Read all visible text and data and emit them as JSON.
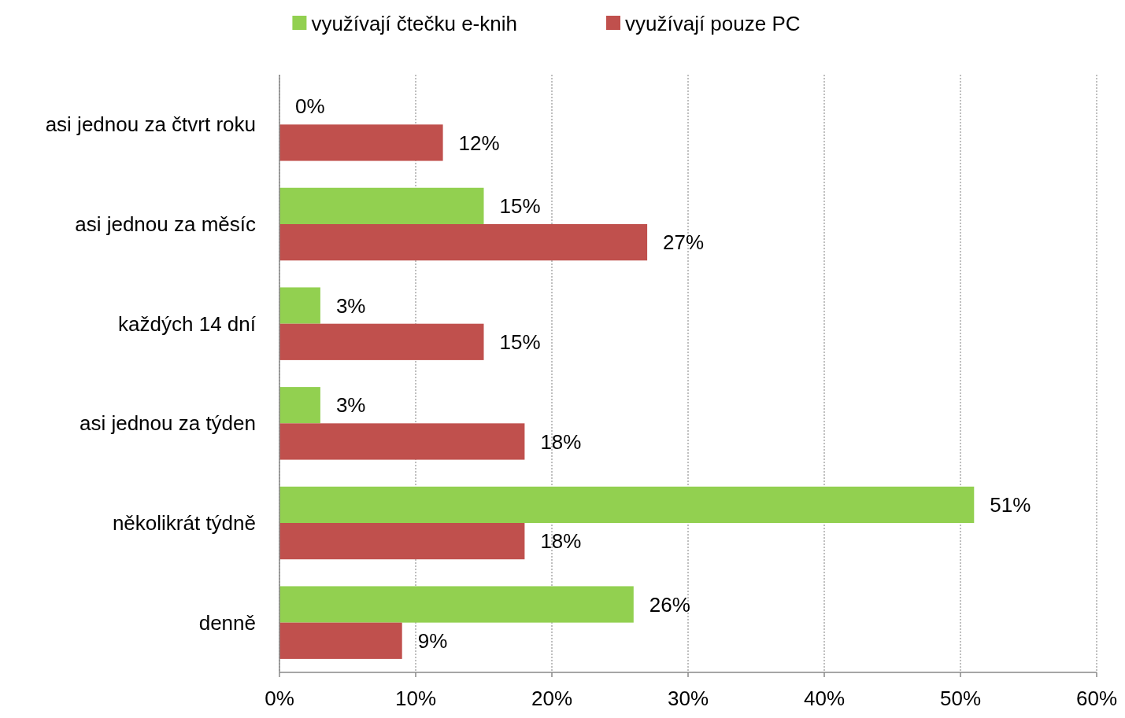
{
  "chart_data": {
    "type": "bar",
    "orientation": "horizontal",
    "categories": [
      "asi jednou za čtvrt roku",
      "asi jednou za měsíc",
      "každých 14 dní",
      "asi jednou za týden",
      "několikrát týdně",
      "denně"
    ],
    "series": [
      {
        "name": "využívají čtečku e-knih",
        "color": "#92d050",
        "values": [
          0,
          15,
          3,
          3,
          51,
          26
        ],
        "value_labels": [
          "0%",
          "15%",
          "3%",
          "3%",
          "51%",
          "26%"
        ]
      },
      {
        "name": "využívají pouze PC",
        "color": "#c0504d",
        "values": [
          12,
          27,
          15,
          18,
          18,
          9
        ],
        "value_labels": [
          "12%",
          "27%",
          "15%",
          "18%",
          "18%",
          "9%"
        ]
      }
    ],
    "xlim": [
      0,
      60
    ],
    "xticks": [
      {
        "value": 0,
        "label": "0%"
      },
      {
        "value": 10,
        "label": "10%"
      },
      {
        "value": 20,
        "label": "20%"
      },
      {
        "value": 30,
        "label": "30%"
      },
      {
        "value": 40,
        "label": "40%"
      },
      {
        "value": 50,
        "label": "50%"
      },
      {
        "value": 60,
        "label": "60%"
      }
    ],
    "grid": "x",
    "legend": "top"
  }
}
